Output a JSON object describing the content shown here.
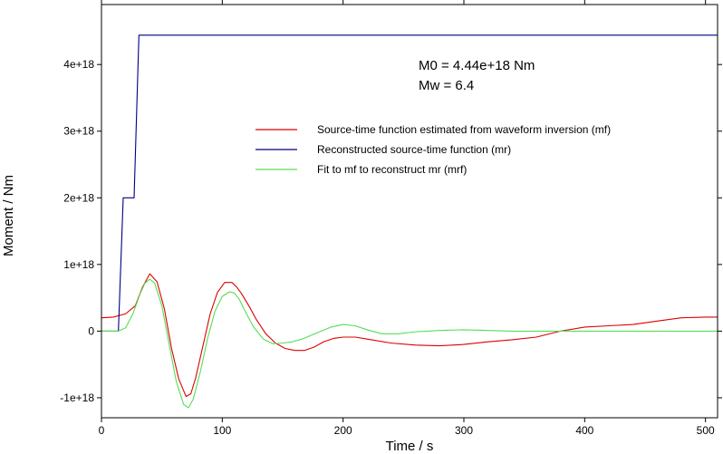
{
  "chart_data": {
    "type": "line",
    "title": "",
    "xlabel": "Time / s",
    "ylabel": "Moment / Nm",
    "xlim": [
      0,
      510
    ],
    "ylim": [
      -1.3e+18,
      4.9e+18
    ],
    "grid": false,
    "legend_position": "right",
    "x_ticks": [
      {
        "value": 0,
        "label": "0"
      },
      {
        "value": 100,
        "label": "100"
      },
      {
        "value": 200,
        "label": "200"
      },
      {
        "value": 300,
        "label": "300"
      },
      {
        "value": 400,
        "label": "400"
      },
      {
        "value": 500,
        "label": "500"
      }
    ],
    "y_ticks": [
      {
        "value": -1e+18,
        "label": "-1e+18"
      },
      {
        "value": 0,
        "label": "0"
      },
      {
        "value": 1e+18,
        "label": "1e+18"
      },
      {
        "value": 2e+18,
        "label": "2e+18"
      },
      {
        "value": 3e+18,
        "label": "3e+18"
      },
      {
        "value": 4e+18,
        "label": "4e+18"
      }
    ],
    "annotations": [
      "M0 = 4.44e+18 Nm",
      "Mw = 6.4"
    ],
    "series": [
      {
        "name": "Source-time function estimated from waveform inversion (mf)",
        "color": "#dd0000",
        "x": [
          0,
          10,
          20,
          28,
          34,
          40,
          46,
          52,
          58,
          64,
          70,
          74,
          78,
          84,
          90,
          96,
          102,
          108,
          112,
          116,
          122,
          128,
          136,
          144,
          152,
          160,
          168,
          176,
          184,
          192,
          200,
          210,
          220,
          240,
          260,
          280,
          300,
          320,
          340,
          360,
          380,
          400,
          420,
          440,
          460,
          480,
          500,
          510
        ],
        "y": [
          2e+17,
          2.1e+17,
          2.6e+17,
          3.8e+17,
          6.6e+17,
          8.6e+17,
          7.4e+17,
          3.4e+17,
          -2.6e+17,
          -7.2e+17,
          -9.8e+17,
          -9.4e+17,
          -7e+17,
          -2.2e+17,
          2.6e+17,
          5.8e+17,
          7.3e+17,
          7.3e+17,
          6.6e+17,
          5.6e+17,
          3.8e+17,
          1.8e+17,
          -4e+16,
          -1.8e+17,
          -2.6e+17,
          -2.9e+17,
          -2.9e+17,
          -2.4e+17,
          -1.6e+17,
          -1.1e+17,
          -9e+16,
          -9e+16,
          -1.2e+17,
          -1.8e+17,
          -2.1e+17,
          -2.2e+17,
          -2e+17,
          -1.6e+17,
          -1.3e+17,
          -9e+16,
          0,
          6e+16,
          8e+16,
          1e+17,
          1.5e+17,
          2e+17,
          2.1e+17,
          2.1e+17
        ]
      },
      {
        "name": "Reconstructed source-time function (mr)",
        "color": "#000080",
        "x": [
          0,
          14,
          18,
          27,
          31,
          510
        ],
        "y": [
          0,
          0,
          2e+18,
          2e+18,
          4.44e+18,
          4.44e+18
        ]
      },
      {
        "name": "Fit to mf to reconstruct mr (mrf)",
        "color": "#55dd55",
        "x": [
          0,
          14,
          20,
          26,
          32,
          36,
          40,
          44,
          50,
          56,
          62,
          68,
          72,
          76,
          82,
          88,
          94,
          100,
          106,
          110,
          114,
          120,
          126,
          134,
          142,
          150,
          158,
          166,
          174,
          182,
          190,
          200,
          210,
          220,
          232,
          246,
          260,
          280,
          300,
          320,
          340,
          360,
          380,
          400,
          450,
          510
        ],
        "y": [
          0,
          0,
          5e+16,
          2.6e+17,
          5.6e+17,
          7.2e+17,
          7.8e+17,
          7.2e+17,
          3.8e+17,
          -2e+17,
          -7.6e+17,
          -1.1e+18,
          -1.15e+18,
          -1.02e+18,
          -6e+17,
          -1e+17,
          3e+17,
          5.2e+17,
          5.9e+17,
          5.7e+17,
          4.8e+17,
          2.6e+17,
          6e+16,
          -1.2e+17,
          -1.9e+17,
          -1.8e+17,
          -1.6e+17,
          -1.2e+17,
          -6e+16,
          0,
          6e+16,
          1e+17,
          8e+16,
          2e+16,
          -4e+16,
          -4e+16,
          -1e+16,
          1e+16,
          2e+16,
          1e+16,
          0,
          0,
          0,
          0,
          0,
          0
        ]
      }
    ]
  }
}
